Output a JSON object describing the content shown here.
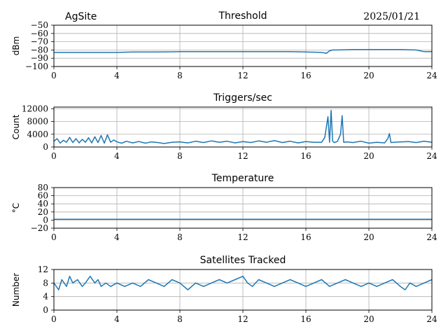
{
  "header": {
    "site": "AgSite",
    "date": "2025/01/21"
  },
  "series_color": "#1f77b4",
  "chart_data": [
    {
      "type": "line",
      "title": "Threshold",
      "ylabel": "dBm",
      "xlim": [
        0,
        24
      ],
      "ylim": [
        -100,
        -50
      ],
      "xticks": [
        0,
        4,
        8,
        12,
        16,
        20,
        24
      ],
      "yticks": [
        -100,
        -90,
        -80,
        -70,
        -60,
        -50
      ],
      "yticklabels": [
        "−100",
        "−90",
        "−80",
        "−70",
        "−60",
        "−50"
      ],
      "grid": true,
      "x": [
        0,
        1,
        2,
        3,
        4,
        5,
        6,
        7,
        8,
        9,
        10,
        11,
        12,
        13,
        14,
        15,
        16,
        17,
        17.3,
        17.5,
        17.7,
        18,
        19,
        20,
        21,
        22,
        23,
        23.5,
        24
      ],
      "y": [
        -83,
        -83,
        -83,
        -83,
        -83,
        -82.5,
        -82.5,
        -82.3,
        -82,
        -82,
        -82,
        -82,
        -82,
        -82,
        -82,
        -82,
        -82.5,
        -83,
        -84,
        -81,
        -80,
        -80,
        -79.5,
        -79.5,
        -79.5,
        -79.5,
        -80,
        -82,
        -82
      ]
    },
    {
      "type": "line",
      "title": "Triggers/sec",
      "ylabel": "Count",
      "xlim": [
        0,
        24
      ],
      "ylim": [
        0,
        12500
      ],
      "xticks": [
        0,
        4,
        8,
        12,
        16,
        20,
        24
      ],
      "yticks": [
        0,
        4000,
        8000,
        12000
      ],
      "yticklabels": [
        "0",
        "4000",
        "8000",
        "12000"
      ],
      "grid": true,
      "x": [
        0,
        0.2,
        0.4,
        0.6,
        0.8,
        1.0,
        1.2,
        1.4,
        1.6,
        1.8,
        2.0,
        2.2,
        2.4,
        2.6,
        2.8,
        3.0,
        3.2,
        3.4,
        3.6,
        3.8,
        4.0,
        4.3,
        4.6,
        5.0,
        5.4,
        5.8,
        6.2,
        6.6,
        7.0,
        7.5,
        8.0,
        8.5,
        9.0,
        9.5,
        10.0,
        10.5,
        11.0,
        11.5,
        12.0,
        12.5,
        13.0,
        13.5,
        14.0,
        14.5,
        15.0,
        15.5,
        16.0,
        16.5,
        17.0,
        17.2,
        17.4,
        17.5,
        17.6,
        17.7,
        17.8,
        18.0,
        18.2,
        18.3,
        18.4,
        18.6,
        19.0,
        19.5,
        20.0,
        20.5,
        21.0,
        21.2,
        21.3,
        21.4,
        21.6,
        22.0,
        22.5,
        23.0,
        23.5,
        24.0
      ],
      "y": [
        1800,
        2600,
        1200,
        2100,
        1500,
        3000,
        1400,
        2600,
        1300,
        2400,
        1500,
        2900,
        1300,
        3200,
        1400,
        3600,
        1200,
        3800,
        1500,
        2200,
        1600,
        1200,
        1800,
        1300,
        1700,
        1200,
        1600,
        1400,
        1100,
        1500,
        1600,
        1300,
        1800,
        1400,
        1900,
        1500,
        1800,
        1300,
        1700,
        1400,
        1900,
        1500,
        2000,
        1400,
        1800,
        1300,
        1700,
        1500,
        1500,
        3000,
        9500,
        1500,
        11500,
        1800,
        1400,
        1700,
        4000,
        9800,
        1500,
        1600,
        1400,
        1800,
        1200,
        1500,
        1300,
        2600,
        4200,
        1400,
        1500,
        1600,
        1700,
        1400,
        1800,
        1500
      ]
    },
    {
      "type": "line",
      "title": "Temperature",
      "ylabel": "°C",
      "xlim": [
        0,
        24
      ],
      "ylim": [
        -20,
        80
      ],
      "xticks": [
        0,
        4,
        8,
        12,
        16,
        20,
        24
      ],
      "yticks": [
        -20,
        0,
        20,
        40,
        60,
        80
      ],
      "yticklabels": [
        "−20",
        "0",
        "20",
        "40",
        "60",
        "80"
      ],
      "grid": true,
      "x": [
        0,
        24
      ],
      "y": [
        2,
        2
      ]
    },
    {
      "type": "line",
      "title": "Satellites Tracked",
      "ylabel": "Number",
      "xlim": [
        0,
        24
      ],
      "ylim": [
        0,
        12
      ],
      "xticks": [
        0,
        4,
        8,
        12,
        16,
        20,
        24
      ],
      "yticks": [
        0,
        4,
        8,
        12
      ],
      "yticklabels": [
        "0",
        "4",
        "8",
        "12"
      ],
      "grid": true,
      "x": [
        0,
        0.3,
        0.5,
        0.8,
        1.0,
        1.2,
        1.5,
        1.8,
        2.0,
        2.3,
        2.6,
        2.8,
        3.0,
        3.3,
        3.6,
        4.0,
        4.5,
        5.0,
        5.5,
        6.0,
        6.5,
        7.0,
        7.5,
        8.0,
        8.5,
        9.0,
        9.5,
        10.0,
        10.5,
        11.0,
        11.5,
        12.0,
        12.3,
        12.6,
        13.0,
        13.5,
        14.0,
        14.5,
        15.0,
        15.5,
        16.0,
        16.5,
        17.0,
        17.5,
        18.0,
        18.5,
        19.0,
        19.5,
        20.0,
        20.5,
        21.0,
        21.5,
        22.0,
        22.3,
        22.6,
        23.0,
        23.5,
        24.0
      ],
      "y": [
        8,
        6,
        9,
        7,
        10,
        8,
        9,
        7,
        8,
        10,
        8,
        9,
        7,
        8,
        7,
        8,
        7,
        8,
        7,
        9,
        8,
        7,
        9,
        8,
        6,
        8,
        7,
        8,
        9,
        8,
        9,
        10,
        8,
        7,
        9,
        8,
        7,
        8,
        9,
        8,
        7,
        8,
        9,
        7,
        8,
        9,
        8,
        7,
        8,
        7,
        8,
        9,
        7,
        6,
        8,
        7,
        8,
        9
      ]
    }
  ]
}
